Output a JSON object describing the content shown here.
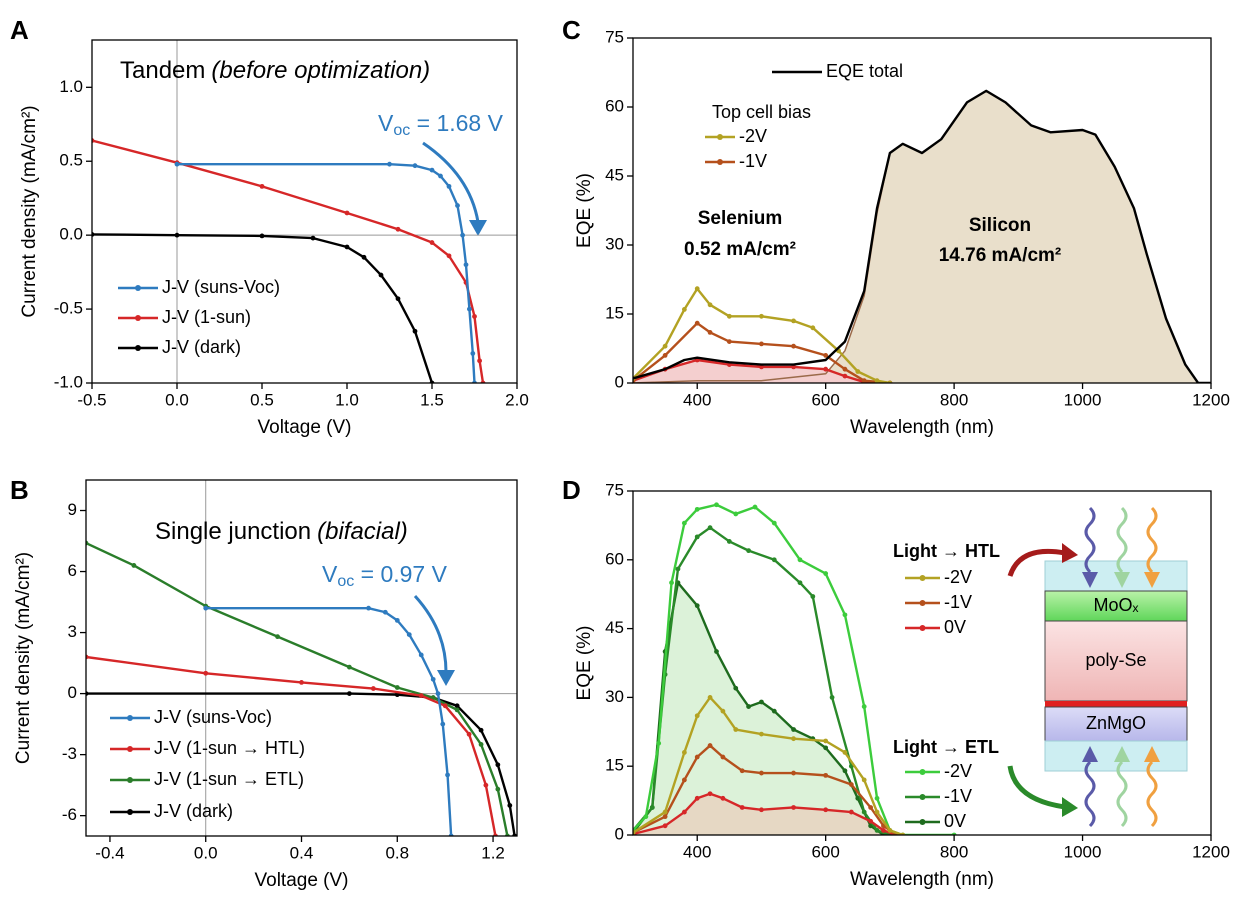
{
  "chart_data": [
    {
      "type": "line",
      "panel_label": "A",
      "title": "Tandem",
      "title_italic": "(before optimization)",
      "xlabel": "Voltage (V)",
      "ylabel": "Current density (mA/cm²)",
      "annotation": [
        "V",
        "oc",
        " = 1.68 V"
      ],
      "annotation_color": "#2e7bbf",
      "xlim": [
        -0.5,
        2.0
      ],
      "ylim": [
        -1.0,
        1.32
      ],
      "xticks": [
        -0.5,
        {
          "value": 0,
          "label": "0.0"
        },
        0.5,
        {
          "value": 1,
          "label": "1.0"
        },
        1.5,
        {
          "value": 2,
          "label": "2.0"
        }
      ],
      "yticks": [
        {
          "value": -1,
          "label": "-1.0"
        },
        -0.5,
        {
          "value": 0,
          "label": "0.0"
        },
        0.5,
        {
          "value": 1,
          "label": "1.0"
        }
      ],
      "zero_lines": true,
      "series": [
        {
          "name": "J-V (suns-Voc)",
          "color": "#2e7bbf",
          "x": [
            0,
            1.25,
            1.4,
            1.5,
            1.55,
            1.6,
            1.65,
            1.68,
            1.7,
            1.72,
            1.74,
            1.75
          ],
          "values": [
            0.48,
            0.48,
            0.47,
            0.44,
            0.4,
            0.33,
            0.2,
            0.0,
            -0.2,
            -0.5,
            -0.8,
            -1.0
          ]
        },
        {
          "name": "J-V (1-sun)",
          "color": "#d62728",
          "x": [
            -0.5,
            0,
            0.5,
            1.0,
            1.3,
            1.5,
            1.6,
            1.7,
            1.75,
            1.78,
            1.8
          ],
          "values": [
            0.64,
            0.49,
            0.33,
            0.15,
            0.04,
            -0.05,
            -0.14,
            -0.32,
            -0.55,
            -0.85,
            -1.0
          ]
        },
        {
          "name": "J-V (dark)",
          "color": "#000000",
          "x": [
            -0.5,
            0,
            0.5,
            0.8,
            1.0,
            1.1,
            1.2,
            1.3,
            1.4,
            1.5
          ],
          "values": [
            0.005,
            0,
            -0.005,
            -0.02,
            -0.08,
            -0.15,
            -0.27,
            -0.43,
            -0.65,
            -1.0
          ]
        }
      ]
    },
    {
      "type": "line",
      "panel_label": "B",
      "title": "Single junction",
      "title_italic": "(bifacial)",
      "xlabel": "Voltage (V)",
      "ylabel": "Current density (mA/cm²)",
      "annotation": [
        "V",
        "oc",
        " = 0.97 V"
      ],
      "annotation_color": "#2e7bbf",
      "xlim": [
        -0.5,
        1.3
      ],
      "ylim": [
        -7,
        10.5
      ],
      "xticks": [
        -0.4,
        {
          "value": 0,
          "label": "0.0"
        },
        0.4,
        0.8,
        1.2
      ],
      "yticks": [
        -6,
        -3,
        0,
        3,
        6,
        9
      ],
      "zero_lines": true,
      "series": [
        {
          "name": "J-V (suns-Voc)",
          "color": "#2e7bbf",
          "x": [
            0,
            0.68,
            0.75,
            0.8,
            0.85,
            0.9,
            0.95,
            0.97,
            0.99,
            1.01,
            1.025
          ],
          "values": [
            4.2,
            4.2,
            4.0,
            3.6,
            2.9,
            1.9,
            0.7,
            0,
            -1.5,
            -4,
            -7
          ]
        },
        {
          "name": "J-V (1-sun → HTL)",
          "color": "#d62728",
          "x": [
            -0.5,
            0,
            0.4,
            0.7,
            0.9,
            1.0,
            1.1,
            1.17,
            1.21
          ],
          "values": [
            1.8,
            1.0,
            0.55,
            0.25,
            -0.1,
            -0.6,
            -2.0,
            -4.5,
            -7
          ]
        },
        {
          "name": "J-V (1-sun → ETL)",
          "color": "#2a7d2a",
          "x": [
            -0.5,
            -0.3,
            0,
            0.3,
            0.6,
            0.8,
            0.95,
            1.05,
            1.15,
            1.22,
            1.26
          ],
          "values": [
            7.4,
            6.3,
            4.3,
            2.8,
            1.3,
            0.3,
            -0.2,
            -0.8,
            -2.5,
            -4.7,
            -7
          ]
        },
        {
          "name": "J-V (dark)",
          "color": "#000000",
          "x": [
            -0.5,
            0.6,
            0.8,
            0.95,
            1.05,
            1.15,
            1.22,
            1.27,
            1.29
          ],
          "values": [
            0,
            0,
            -0.05,
            -0.2,
            -0.6,
            -1.8,
            -3.5,
            -5.5,
            -7
          ]
        }
      ]
    },
    {
      "type": "line",
      "panel_label": "C",
      "xlabel": "Wavelength (nm)",
      "ylabel": "EQE (%)",
      "legend_titles": [
        "Top cell bias"
      ],
      "annotations": [
        "Selenium",
        "0.52 mA/cm²",
        "Silicon",
        "14.76 mA/cm²"
      ],
      "xlim": [
        300,
        1200
      ],
      "ylim": [
        0,
        75
      ],
      "xticks": [
        400,
        600,
        800,
        1000,
        1200
      ],
      "yticks": [
        0,
        15,
        30,
        45,
        60,
        75
      ],
      "series": [
        {
          "name": "EQE total",
          "color": "#000000",
          "marker": false,
          "x": [
            300,
            350,
            380,
            400,
            450,
            500,
            550,
            600,
            630,
            660,
            680,
            700,
            720,
            750,
            780,
            820,
            850,
            880,
            920,
            950,
            1000,
            1020,
            1050,
            1080,
            1100,
            1130,
            1160,
            1180,
            1200
          ],
          "values": [
            1,
            3,
            5,
            5.5,
            4.5,
            4,
            4,
            5,
            9,
            20,
            38,
            50,
            52,
            50,
            53,
            61,
            63.5,
            61,
            56,
            54.5,
            55,
            54,
            47,
            38,
            28,
            14,
            4,
            0,
            0
          ]
        },
        {
          "name": "-2V",
          "color": "#b3a223",
          "x": [
            300,
            350,
            380,
            400,
            420,
            450,
            500,
            550,
            580,
            620,
            650,
            680,
            700
          ],
          "values": [
            1,
            8,
            16,
            20.5,
            17,
            14.5,
            14.5,
            13.5,
            12,
            7,
            2.5,
            0.5,
            0
          ]
        },
        {
          "name": "-1V",
          "color": "#b5501c",
          "x": [
            300,
            350,
            400,
            420,
            450,
            500,
            550,
            600,
            630,
            660,
            700
          ],
          "values": [
            0.5,
            6,
            13,
            11,
            9,
            8.5,
            8,
            6,
            3,
            0.5,
            0
          ]
        },
        {
          "color": "#d62728",
          "fill": "#f4cfcf",
          "x": [
            300,
            350,
            400,
            450,
            500,
            550,
            600,
            630,
            660,
            700
          ],
          "values": [
            0.5,
            3,
            5,
            4,
            3.5,
            3.5,
            3,
            1.5,
            0.2,
            0
          ]
        },
        {
          "color": "#9b6a4a",
          "fill": "#e9dfcb",
          "marker": false,
          "x": [
            300,
            400,
            500,
            600,
            630,
            660,
            680,
            700,
            720,
            750,
            780,
            820,
            850,
            880,
            920,
            950,
            1000,
            1020,
            1050,
            1080,
            1100,
            1130,
            1160,
            1180,
            1200
          ],
          "values": [
            0,
            0.5,
            0.5,
            2,
            7,
            19,
            37,
            50,
            52,
            50,
            53,
            61,
            63.5,
            61,
            56,
            54.5,
            55,
            54,
            47,
            38,
            28,
            14,
            4,
            0,
            0
          ]
        }
      ]
    },
    {
      "type": "line",
      "panel_label": "D",
      "xlabel": "Wavelength (nm)",
      "ylabel": "EQE (%)",
      "legend_titles": [
        "Light → HTL",
        "Light → ETL"
      ],
      "xlim": [
        300,
        1200
      ],
      "ylim": [
        0,
        75
      ],
      "xticks": [
        400,
        600,
        800,
        1000,
        1200
      ],
      "yticks": [
        0,
        15,
        30,
        45,
        60,
        75
      ],
      "series": [
        {
          "name": "-2V",
          "color": "#b3a223",
          "x": [
            300,
            350,
            380,
            400,
            420,
            440,
            460,
            500,
            550,
            600,
            630,
            660,
            680,
            700,
            720
          ],
          "values": [
            0.5,
            5,
            18,
            26,
            30,
            27,
            23,
            22,
            21,
            20.5,
            18,
            12,
            5,
            1,
            0
          ]
        },
        {
          "name": "-1V",
          "color": "#b5501c",
          "x": [
            300,
            350,
            380,
            400,
            420,
            440,
            470,
            500,
            550,
            600,
            640,
            670,
            690,
            710
          ],
          "values": [
            0.5,
            4,
            12,
            17,
            19.5,
            17,
            14,
            13.5,
            13.5,
            13,
            11,
            6,
            2,
            0
          ]
        },
        {
          "name": "0V",
          "color": "#d62728",
          "fill": "#e6d8c4",
          "x": [
            300,
            350,
            380,
            400,
            420,
            440,
            470,
            500,
            550,
            600,
            640,
            670,
            690,
            710
          ],
          "values": [
            0.2,
            2,
            5,
            8,
            9,
            8,
            6,
            5.5,
            6,
            5.5,
            5,
            3,
            1,
            0
          ]
        },
        {
          "name": "-2V",
          "color": "#3ccc3c",
          "x": [
            300,
            320,
            340,
            360,
            380,
            400,
            430,
            460,
            490,
            520,
            560,
            600,
            630,
            660,
            680,
            700,
            720,
            800
          ],
          "values": [
            1,
            4,
            20,
            55,
            68,
            71,
            72,
            70,
            71.5,
            68,
            60,
            57,
            48,
            28,
            8,
            1,
            0,
            0
          ]
        },
        {
          "name": "-1V",
          "color": "#2a8a2a",
          "x": [
            300,
            330,
            350,
            370,
            400,
            420,
            450,
            480,
            520,
            560,
            580,
            610,
            640,
            660,
            680,
            700
          ],
          "values": [
            1,
            6,
            35,
            58,
            65,
            67,
            64,
            62,
            60,
            55,
            52,
            30,
            15,
            5,
            1,
            0
          ]
        },
        {
          "name": "0V",
          "color": "#1e6b1e",
          "fill": "#dcf2d9",
          "x": [
            300,
            330,
            350,
            370,
            400,
            430,
            460,
            480,
            500,
            520,
            550,
            580,
            600,
            630,
            650,
            670,
            690
          ],
          "values": [
            0.5,
            6,
            40,
            55,
            50,
            40,
            32,
            28,
            29,
            27,
            23,
            21,
            19,
            14,
            8,
            2,
            0
          ]
        }
      ]
    }
  ],
  "device": {
    "layers": [
      "MoOₓ",
      "poly-Se",
      "ZnMgO"
    ]
  }
}
